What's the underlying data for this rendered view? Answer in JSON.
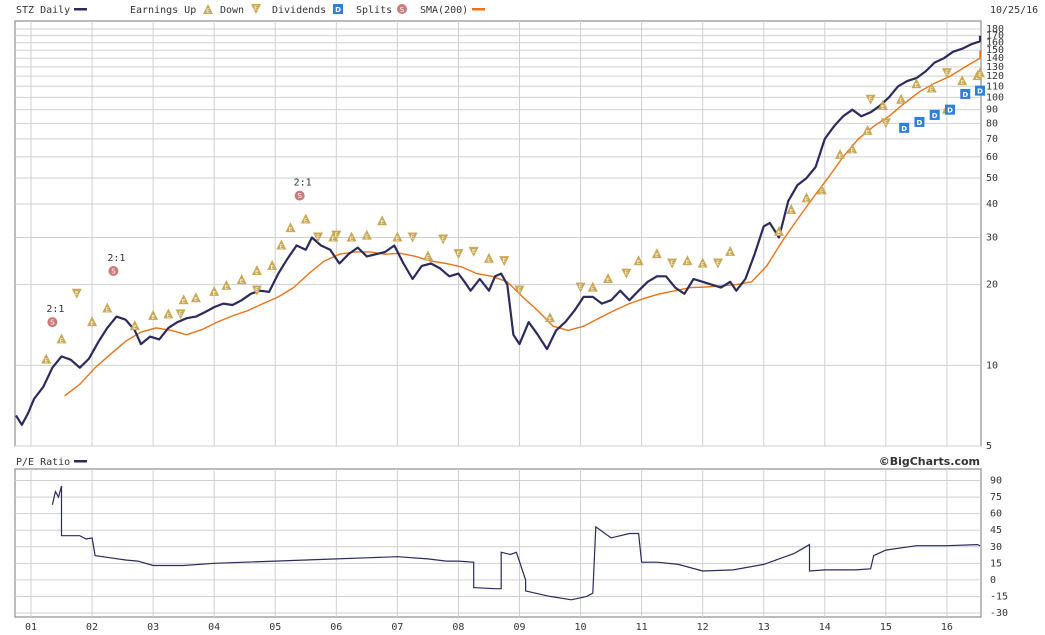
{
  "header": {
    "ticker_label": "STZ Daily",
    "earnings_up_label": "Earnings Up",
    "earnings_down_label": "Down",
    "dividends_label": "Dividends",
    "splits_label": "Splits",
    "sma_label": "SMA(200)",
    "date_label": "10/25/16",
    "earnings_glyph": "E",
    "dividend_glyph": "D",
    "split_glyph": "S"
  },
  "lower_panel": {
    "title": "P/E Ratio",
    "brand": "©BigCharts.com"
  },
  "colors": {
    "price": "#2b2b5c",
    "sma": "#e8731a",
    "earnings": "#c9a956",
    "dividend": "#2f7fd8",
    "split": "#cc7a7a",
    "grid": "#cfcfcf",
    "border": "#777777"
  },
  "chart_data": [
    {
      "type": "line",
      "scale": "log",
      "x_range": [
        2001.0,
        2016.82
      ],
      "ylim": [
        5,
        180
      ],
      "y_ticks": [
        5,
        10,
        20,
        30,
        40,
        50,
        60,
        70,
        80,
        90,
        100,
        110,
        120,
        130,
        140,
        150,
        160,
        170,
        180
      ],
      "x_tick_labels": [
        {
          "x": 2001,
          "label": "01"
        },
        {
          "x": 2002,
          "label": "02"
        },
        {
          "x": 2003,
          "label": "03"
        },
        {
          "x": 2004,
          "label": "04"
        },
        {
          "x": 2005,
          "label": "05"
        },
        {
          "x": 2006,
          "label": "06"
        },
        {
          "x": 2007,
          "label": "07"
        },
        {
          "x": 2008,
          "label": "08"
        },
        {
          "x": 2009,
          "label": "09"
        },
        {
          "x": 2010,
          "label": "10"
        },
        {
          "x": 2011,
          "label": "11"
        },
        {
          "x": 2012,
          "label": "12"
        },
        {
          "x": 2013,
          "label": "13"
        },
        {
          "x": 2014,
          "label": "14"
        },
        {
          "x": 2015,
          "label": "15"
        },
        {
          "x": 2016,
          "label": "16"
        }
      ],
      "series": [
        {
          "name": "STZ Daily",
          "x": [
            2000.75,
            2000.85,
            2000.95,
            2001.05,
            2001.2,
            2001.35,
            2001.5,
            2001.65,
            2001.8,
            2001.95,
            2002.1,
            2002.25,
            2002.4,
            2002.55,
            2002.7,
            2002.8,
            2002.95,
            2003.1,
            2003.25,
            2003.4,
            2003.55,
            2003.7,
            2003.85,
            2004.0,
            2004.15,
            2004.3,
            2004.45,
            2004.6,
            2004.75,
            2004.9,
            2005.05,
            2005.2,
            2005.35,
            2005.5,
            2005.6,
            2005.75,
            2005.9,
            2006.05,
            2006.2,
            2006.35,
            2006.5,
            2006.65,
            2006.8,
            2006.95,
            2007.1,
            2007.25,
            2007.4,
            2007.55,
            2007.7,
            2007.85,
            2008.0,
            2008.1,
            2008.2,
            2008.35,
            2008.5,
            2008.6,
            2008.7,
            2008.8,
            2008.9,
            2009.0,
            2009.15,
            2009.3,
            2009.45,
            2009.6,
            2009.75,
            2009.9,
            2010.05,
            2010.2,
            2010.35,
            2010.5,
            2010.65,
            2010.8,
            2010.95,
            2011.1,
            2011.25,
            2011.4,
            2011.55,
            2011.7,
            2011.85,
            2012.0,
            2012.15,
            2012.3,
            2012.45,
            2012.55,
            2012.7,
            2012.85,
            2013.0,
            2013.1,
            2013.25,
            2013.4,
            2013.55,
            2013.7,
            2013.85,
            2014.0,
            2014.15,
            2014.3,
            2014.45,
            2014.6,
            2014.75,
            2014.9,
            2015.05,
            2015.2,
            2015.35,
            2015.5,
            2015.65,
            2015.8,
            2015.95,
            2016.1,
            2016.25,
            2016.4,
            2016.55,
            2016.7,
            2016.82
          ],
          "values": [
            6.5,
            6.0,
            6.6,
            7.5,
            8.3,
            9.8,
            10.8,
            10.5,
            9.8,
            10.6,
            12.2,
            13.8,
            15.2,
            14.8,
            13.5,
            12.0,
            12.8,
            12.5,
            13.8,
            14.5,
            15.0,
            15.2,
            15.8,
            16.5,
            17.0,
            16.8,
            17.5,
            18.5,
            19.0,
            18.8,
            22.0,
            25.0,
            28.0,
            27.0,
            30.0,
            28.0,
            27.0,
            24.0,
            26.0,
            27.5,
            25.5,
            26.0,
            26.5,
            28.0,
            24.0,
            21.0,
            23.5,
            24.0,
            23.0,
            21.5,
            22.0,
            20.5,
            19.0,
            21.0,
            19.0,
            21.5,
            22.0,
            20.0,
            13.0,
            12.0,
            14.5,
            13.0,
            11.5,
            13.5,
            14.5,
            16.0,
            18.0,
            18.0,
            17.0,
            17.5,
            19.0,
            17.5,
            19.0,
            20.5,
            21.5,
            21.5,
            19.5,
            18.5,
            21.0,
            20.5,
            20.0,
            19.5,
            20.5,
            19.0,
            21.0,
            26.0,
            33.0,
            34.0,
            30.0,
            41.0,
            47.0,
            50.0,
            55.0,
            70.0,
            78.0,
            85.0,
            90.0,
            85.0,
            88.0,
            93.0,
            100.0,
            110.0,
            115.0,
            118.0,
            125.0,
            135.0,
            140.0,
            148.0,
            152.0,
            158.0,
            162.0,
            168.0,
            170.0
          ]
        },
        {
          "name": "SMA(200)",
          "x": [
            2001.55,
            2001.8,
            2002.05,
            2002.3,
            2002.55,
            2002.8,
            2003.05,
            2003.3,
            2003.55,
            2003.8,
            2004.05,
            2004.3,
            2004.55,
            2004.8,
            2005.05,
            2005.3,
            2005.55,
            2005.8,
            2006.05,
            2006.3,
            2006.55,
            2006.8,
            2007.05,
            2007.3,
            2007.55,
            2007.8,
            2008.05,
            2008.3,
            2008.55,
            2008.8,
            2009.05,
            2009.3,
            2009.55,
            2009.8,
            2010.05,
            2010.3,
            2010.55,
            2010.8,
            2011.05,
            2011.3,
            2011.55,
            2011.8,
            2012.05,
            2012.3,
            2012.55,
            2012.8,
            2013.05,
            2013.3,
            2013.55,
            2013.8,
            2014.05,
            2014.3,
            2014.55,
            2014.8,
            2015.05,
            2015.3,
            2015.55,
            2015.8,
            2016.05,
            2016.3,
            2016.55,
            2016.82
          ],
          "values": [
            7.7,
            8.5,
            9.8,
            11.0,
            12.3,
            13.3,
            13.8,
            13.5,
            13.0,
            13.6,
            14.5,
            15.3,
            16.0,
            17.0,
            18.0,
            19.5,
            22.0,
            24.5,
            26.0,
            26.5,
            26.5,
            26.0,
            26.2,
            25.5,
            24.5,
            24.0,
            23.3,
            22.0,
            21.5,
            20.5,
            18.0,
            16.0,
            14.0,
            13.5,
            14.0,
            15.0,
            16.0,
            17.0,
            17.8,
            18.5,
            19.0,
            19.5,
            19.6,
            19.8,
            20.0,
            20.5,
            23.5,
            29.0,
            35.0,
            42.0,
            50.0,
            60.0,
            70.0,
            78.0,
            85.0,
            95.0,
            105.0,
            113.0,
            120.0,
            130.0,
            140.0,
            150.0
          ]
        }
      ],
      "earnings_up": [
        {
          "x": 2001.25,
          "y": 10.5
        },
        {
          "x": 2001.5,
          "y": 12.5
        },
        {
          "x": 2002.0,
          "y": 14.5
        },
        {
          "x": 2002.25,
          "y": 16.3
        },
        {
          "x": 2002.7,
          "y": 14.0
        },
        {
          "x": 2003.0,
          "y": 15.3
        },
        {
          "x": 2003.25,
          "y": 15.5
        },
        {
          "x": 2003.5,
          "y": 17.5
        },
        {
          "x": 2003.7,
          "y": 17.8
        },
        {
          "x": 2004.0,
          "y": 18.8
        },
        {
          "x": 2004.2,
          "y": 19.8
        },
        {
          "x": 2004.45,
          "y": 20.8
        },
        {
          "x": 2004.7,
          "y": 22.5
        },
        {
          "x": 2004.95,
          "y": 23.5
        },
        {
          "x": 2005.1,
          "y": 28.0
        },
        {
          "x": 2005.25,
          "y": 32.5
        },
        {
          "x": 2005.5,
          "y": 35.0
        },
        {
          "x": 2005.95,
          "y": 30.0
        },
        {
          "x": 2006.25,
          "y": 30.0
        },
        {
          "x": 2006.5,
          "y": 30.5
        },
        {
          "x": 2006.75,
          "y": 34.5
        },
        {
          "x": 2007.0,
          "y": 30.0
        },
        {
          "x": 2007.5,
          "y": 25.5
        },
        {
          "x": 2008.5,
          "y": 25.0
        },
        {
          "x": 2009.5,
          "y": 15.0
        },
        {
          "x": 2010.2,
          "y": 19.5
        },
        {
          "x": 2010.45,
          "y": 21.0
        },
        {
          "x": 2010.95,
          "y": 24.5
        },
        {
          "x": 2011.25,
          "y": 26.0
        },
        {
          "x": 2011.75,
          "y": 24.5
        },
        {
          "x": 2012.0,
          "y": 24.0
        },
        {
          "x": 2012.45,
          "y": 26.5
        },
        {
          "x": 2013.25,
          "y": 31.5
        },
        {
          "x": 2013.45,
          "y": 38.0
        },
        {
          "x": 2013.7,
          "y": 42.0
        },
        {
          "x": 2013.95,
          "y": 45.0
        },
        {
          "x": 2014.25,
          "y": 61.0
        },
        {
          "x": 2014.45,
          "y": 64.0
        },
        {
          "x": 2014.7,
          "y": 75.0
        },
        {
          "x": 2014.95,
          "y": 93.0
        },
        {
          "x": 2015.25,
          "y": 98.0
        },
        {
          "x": 2015.5,
          "y": 112.0
        },
        {
          "x": 2015.75,
          "y": 108.0
        },
        {
          "x": 2016.0,
          "y": 90.0
        },
        {
          "x": 2016.25,
          "y": 115.0
        },
        {
          "x": 2016.5,
          "y": 120.0
        },
        {
          "x": 2016.75,
          "y": 123.0
        }
      ],
      "earnings_down": [
        {
          "x": 2001.75,
          "y": 18.5
        },
        {
          "x": 2003.45,
          "y": 15.5
        },
        {
          "x": 2004.7,
          "y": 19.0
        },
        {
          "x": 2005.7,
          "y": 30.0
        },
        {
          "x": 2006.0,
          "y": 30.5
        },
        {
          "x": 2007.25,
          "y": 30.0
        },
        {
          "x": 2007.75,
          "y": 29.5
        },
        {
          "x": 2008.0,
          "y": 26.0
        },
        {
          "x": 2008.25,
          "y": 26.5
        },
        {
          "x": 2008.75,
          "y": 24.5
        },
        {
          "x": 2009.0,
          "y": 19.0
        },
        {
          "x": 2010.0,
          "y": 19.5
        },
        {
          "x": 2010.75,
          "y": 22.0
        },
        {
          "x": 2011.5,
          "y": 24.0
        },
        {
          "x": 2012.25,
          "y": 24.0
        },
        {
          "x": 2014.75,
          "y": 98.0
        },
        {
          "x": 2015.0,
          "y": 80.0
        },
        {
          "x": 2016.0,
          "y": 123.0
        }
      ],
      "dividends": [
        {
          "x": 2015.3,
          "y": 77.0
        },
        {
          "x": 2015.55,
          "y": 81.0
        },
        {
          "x": 2015.8,
          "y": 86.0
        },
        {
          "x": 2016.05,
          "y": 90.0
        },
        {
          "x": 2016.3,
          "y": 103.0
        },
        {
          "x": 2016.6,
          "y": 106.0
        }
      ],
      "splits": [
        {
          "x": 2001.35,
          "y": 14.5,
          "label": "2:1"
        },
        {
          "x": 2002.35,
          "y": 22.5,
          "label": "2:1"
        },
        {
          "x": 2005.4,
          "y": 43.0,
          "label": "2:1"
        }
      ]
    },
    {
      "type": "line",
      "title": "P/E Ratio",
      "ylim": [
        -30,
        95
      ],
      "y_ticks": [
        -30,
        -15,
        0,
        15,
        30,
        45,
        60,
        75,
        90
      ],
      "series": [
        {
          "name": "P/E Ratio",
          "x": [
            2001.35,
            2001.4,
            2001.45,
            2001.5,
            2001.5,
            2001.8,
            2001.9,
            2002.0,
            2002.05,
            2002.3,
            2002.55,
            2002.75,
            2003.0,
            2003.5,
            2004.0,
            2004.5,
            2005.0,
            2005.5,
            2006.0,
            2006.5,
            2007.0,
            2007.5,
            2007.8,
            2008.0,
            2008.25,
            2008.25,
            2008.6,
            2008.7,
            2008.7,
            2008.85,
            2008.95,
            2009.1,
            2009.1,
            2009.5,
            2009.85,
            2010.1,
            2010.2,
            2010.25,
            2010.5,
            2010.8,
            2010.95,
            2011.0,
            2011.25,
            2011.6,
            2012.0,
            2012.5,
            2013.0,
            2013.5,
            2013.75,
            2013.75,
            2014.0,
            2014.5,
            2014.75,
            2014.8,
            2015.0,
            2015.5,
            2016.0,
            2016.5,
            2016.82
          ],
          "values": [
            68,
            80,
            75,
            85,
            40,
            40,
            37,
            38,
            22,
            20,
            18,
            17,
            13,
            13,
            15,
            16,
            17,
            18,
            19,
            20,
            21,
            19,
            17,
            17,
            16,
            -7,
            -8,
            -8,
            25,
            23,
            25,
            0,
            -10,
            -15,
            -18,
            -15,
            -12,
            48,
            38,
            42,
            42,
            16,
            16,
            14,
            8,
            9,
            14,
            24,
            32,
            8,
            9,
            9,
            10,
            22,
            27,
            31,
            31,
            32,
            31
          ]
        }
      ]
    }
  ]
}
